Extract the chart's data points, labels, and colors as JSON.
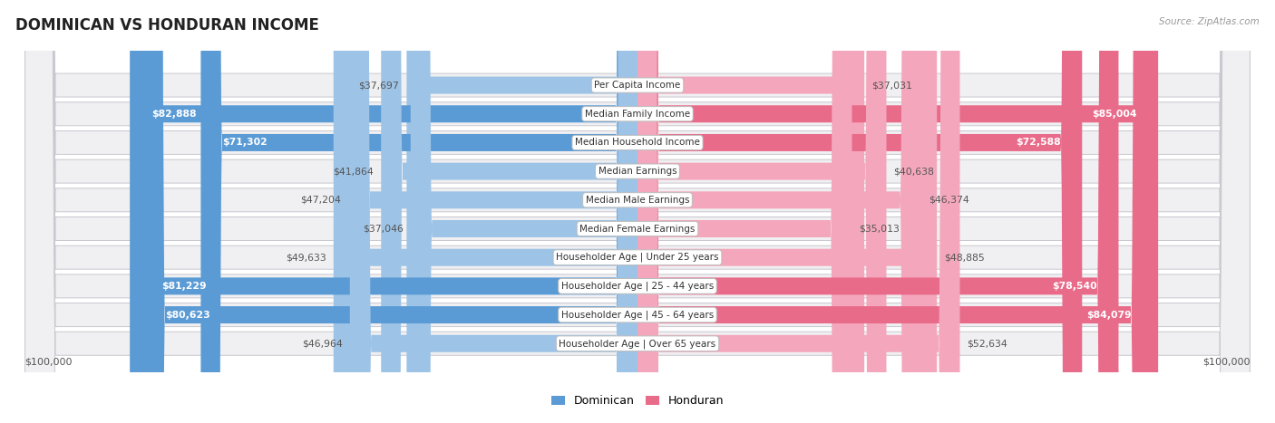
{
  "title": "DOMINICAN VS HONDURAN INCOME",
  "source": "Source: ZipAtlas.com",
  "categories": [
    "Per Capita Income",
    "Median Family Income",
    "Median Household Income",
    "Median Earnings",
    "Median Male Earnings",
    "Median Female Earnings",
    "Householder Age | Under 25 years",
    "Householder Age | 25 - 44 years",
    "Householder Age | 45 - 64 years",
    "Householder Age | Over 65 years"
  ],
  "dominican_values": [
    37697,
    82888,
    71302,
    41864,
    47204,
    37046,
    49633,
    81229,
    80623,
    46964
  ],
  "honduran_values": [
    37031,
    85004,
    72588,
    40638,
    46374,
    35013,
    48885,
    78540,
    84079,
    52634
  ],
  "max_value": 100000,
  "dom_strong": "#5b9bd5",
  "dom_light": "#9dc3e6",
  "hon_strong": "#e96b8a",
  "hon_light": "#f4a7bc",
  "row_bg": "#f0f0f2",
  "row_border": "#c8c8d0",
  "label_bg": "#ffffff",
  "threshold": 60000,
  "title_fontsize": 12,
  "label_fontsize": 7.8,
  "cat_fontsize": 7.5,
  "axis_label_fontsize": 8
}
